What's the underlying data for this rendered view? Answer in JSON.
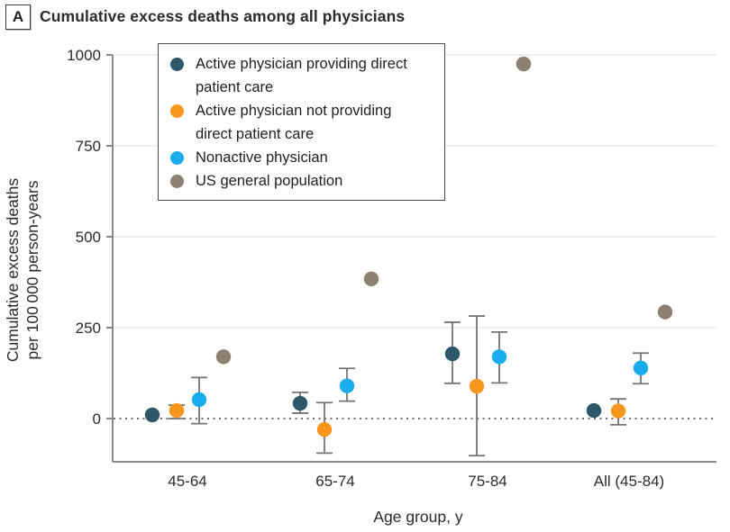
{
  "figure": {
    "panel_label": "A",
    "title": "Cumulative excess deaths among all physicians"
  },
  "chart_data": {
    "type": "scatter",
    "title": "Cumulative excess deaths among all physicians",
    "xlabel": "Age group, y",
    "ylabel_lines": [
      "Cumulative excess deaths",
      "per 100 000 person-years"
    ],
    "categories": [
      "45-64",
      "65-74",
      "75-84",
      "All (45-84)"
    ],
    "yticks": [
      0,
      250,
      500,
      750,
      1000
    ],
    "ylim": [
      -119,
      1000
    ],
    "grid": "horizontal-light-at-250-500-750-1000",
    "zero_line_style": "dotted",
    "legend_position": "inside-top-left",
    "error_bars": "95% CI whiskers with caps",
    "series": [
      {
        "name": "Active physician providing direct patient care",
        "color": "#2E5768",
        "values": [
          10,
          42,
          178,
          22
        ],
        "ci_low": [
          null,
          15,
          97,
          null
        ],
        "ci_high": [
          null,
          72,
          265,
          null
        ]
      },
      {
        "name": "Active physician not providing direct patient care",
        "color": "#F8961D",
        "values": [
          22,
          -30,
          89,
          21
        ],
        "ci_low": [
          0,
          -95,
          -102,
          -17
        ],
        "ci_high": [
          37,
          44,
          282,
          54
        ]
      },
      {
        "name": "Nonactive physician",
        "color": "#1BACEE",
        "values": [
          52,
          90,
          170,
          139
        ],
        "ci_low": [
          -14,
          48,
          98,
          96
        ],
        "ci_high": [
          113,
          138,
          238,
          180
        ]
      },
      {
        "name": "US general population",
        "color": "#8C8170",
        "values": [
          170,
          384,
          975,
          293
        ],
        "ci_low": [
          null,
          null,
          null,
          null
        ],
        "ci_high": [
          null,
          null,
          null,
          null
        ]
      }
    ]
  },
  "colors": {
    "axis": "#7d7d7d",
    "grid": "#e8e8e8",
    "error_bar": "#757575",
    "zero_line": "#3f3f3f",
    "text": "#2b2b2b"
  }
}
